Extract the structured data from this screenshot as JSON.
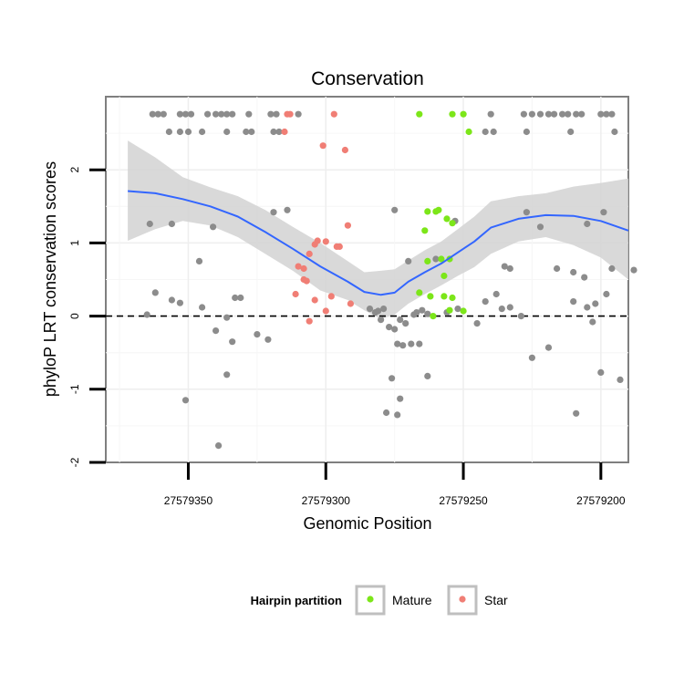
{
  "chart_data": {
    "type": "scatter",
    "title": "Conservation",
    "xlabel": "Genomic Position",
    "ylabel": "phyloP LRT conservation scores",
    "x_reversed": true,
    "xlim": [
      27579380,
      27579190
    ],
    "ylim": [
      -2,
      3
    ],
    "x_ticks": [
      27579350,
      27579300,
      27579250,
      27579200
    ],
    "x_tick_labels": [
      "27579350",
      "27579300",
      "27579250",
      "27579200"
    ],
    "y_ticks": [
      -2,
      -1,
      0,
      1,
      2
    ],
    "y_tick_labels": [
      "-2",
      "-1",
      "0",
      "1",
      "2"
    ],
    "grid": true,
    "reference_line": {
      "y": 0,
      "style": "dashed"
    },
    "legend": {
      "title": "Hairpin partition",
      "placement": "bottom",
      "entries": [
        {
          "label": "Mature",
          "color": "#7CE619"
        },
        {
          "label": "Star",
          "color": "#F07E75"
        }
      ]
    },
    "colors": {
      "Other": "#8C8C8C",
      "Mature": "#7CE619",
      "Star": "#F07E75",
      "smooth": "#3366FF",
      "band": "#D2D2D2"
    },
    "series": [
      {
        "group": "Other",
        "points": [
          [
            27579363,
            2.76
          ],
          [
            27579361,
            2.76
          ],
          [
            27579359,
            2.76
          ],
          [
            27579353,
            2.76
          ],
          [
            27579351,
            2.76
          ],
          [
            27579349,
            2.76
          ],
          [
            27579343,
            2.76
          ],
          [
            27579340,
            2.76
          ],
          [
            27579338,
            2.76
          ],
          [
            27579336,
            2.76
          ],
          [
            27579334,
            2.76
          ],
          [
            27579328,
            2.76
          ],
          [
            27579320,
            2.76
          ],
          [
            27579318,
            2.76
          ],
          [
            27579310,
            2.76
          ],
          [
            27579240,
            2.76
          ],
          [
            27579228,
            2.76
          ],
          [
            27579225,
            2.76
          ],
          [
            27579222,
            2.76
          ],
          [
            27579219,
            2.76
          ],
          [
            27579217,
            2.76
          ],
          [
            27579214,
            2.76
          ],
          [
            27579212,
            2.76
          ],
          [
            27579209,
            2.76
          ],
          [
            27579207,
            2.76
          ],
          [
            27579200,
            2.76
          ],
          [
            27579198,
            2.76
          ],
          [
            27579196,
            2.76
          ],
          [
            27579357,
            2.52
          ],
          [
            27579353,
            2.52
          ],
          [
            27579350,
            2.52
          ],
          [
            27579345,
            2.52
          ],
          [
            27579336,
            2.52
          ],
          [
            27579329,
            2.52
          ],
          [
            27579327,
            2.52
          ],
          [
            27579319,
            2.52
          ],
          [
            27579317,
            2.52
          ],
          [
            27579242,
            2.52
          ],
          [
            27579239,
            2.52
          ],
          [
            27579227,
            2.52
          ],
          [
            27579211,
            2.52
          ],
          [
            27579195,
            2.52
          ],
          [
            27579364,
            1.26
          ],
          [
            27579356,
            1.26
          ],
          [
            27579341,
            1.22
          ],
          [
            27579319,
            1.42
          ],
          [
            27579314,
            1.45
          ],
          [
            27579275,
            1.45
          ],
          [
            27579253,
            1.3
          ],
          [
            27579227,
            1.42
          ],
          [
            27579222,
            1.22
          ],
          [
            27579205,
            1.26
          ],
          [
            27579199,
            1.42
          ],
          [
            27579346,
            0.75
          ],
          [
            27579270,
            0.75
          ],
          [
            27579260,
            0.78
          ],
          [
            27579233,
            0.65
          ],
          [
            27579235,
            0.68
          ],
          [
            27579216,
            0.65
          ],
          [
            27579210,
            0.6
          ],
          [
            27579206,
            0.53
          ],
          [
            27579196,
            0.65
          ],
          [
            27579188,
            0.63
          ],
          [
            27579365,
            0.02
          ],
          [
            27579362,
            0.32
          ],
          [
            27579356,
            0.22
          ],
          [
            27579353,
            0.18
          ],
          [
            27579345,
            0.12
          ],
          [
            27579340,
            -0.2
          ],
          [
            27579336,
            -0.02
          ],
          [
            27579333,
            0.25
          ],
          [
            27579331,
            0.25
          ],
          [
            27579325,
            -0.25
          ],
          [
            27579321,
            -0.32
          ],
          [
            27579284,
            0.1
          ],
          [
            27579282,
            0.05
          ],
          [
            27579281,
            0.07
          ],
          [
            27579280,
            -0.05
          ],
          [
            27579279,
            0.1
          ],
          [
            27579277,
            -0.15
          ],
          [
            27579275,
            -0.18
          ],
          [
            27579273,
            -0.05
          ],
          [
            27579271,
            -0.1
          ],
          [
            27579268,
            0.02
          ],
          [
            27579267,
            0.05
          ],
          [
            27579265,
            0.08
          ],
          [
            27579263,
            0.03
          ],
          [
            27579256,
            0.05
          ],
          [
            27579252,
            0.1
          ],
          [
            27579245,
            -0.1
          ],
          [
            27579242,
            0.2
          ],
          [
            27579238,
            0.3
          ],
          [
            27579236,
            0.1
          ],
          [
            27579233,
            0.12
          ],
          [
            27579229,
            0.0
          ],
          [
            27579210,
            0.2
          ],
          [
            27579205,
            0.12
          ],
          [
            27579202,
            0.17
          ],
          [
            27579198,
            0.3
          ],
          [
            27579203,
            -0.08
          ],
          [
            27579334,
            -0.35
          ],
          [
            27579336,
            -0.8
          ],
          [
            27579351,
            -1.15
          ],
          [
            27579339,
            -1.77
          ],
          [
            27579274,
            -0.38
          ],
          [
            27579272,
            -0.4
          ],
          [
            27579269,
            -0.38
          ],
          [
            27579266,
            -0.38
          ],
          [
            27579263,
            -0.82
          ],
          [
            27579276,
            -0.85
          ],
          [
            27579273,
            -1.13
          ],
          [
            27579278,
            -1.32
          ],
          [
            27579274,
            -1.35
          ],
          [
            27579225,
            -0.57
          ],
          [
            27579219,
            -0.43
          ],
          [
            27579209,
            -1.33
          ],
          [
            27579200,
            -0.77
          ],
          [
            27579193,
            -0.87
          ]
        ]
      },
      {
        "group": "Mature",
        "points": [
          [
            27579266,
            2.76
          ],
          [
            27579254,
            2.76
          ],
          [
            27579250,
            2.76
          ],
          [
            27579248,
            2.52
          ],
          [
            27579264,
            1.17
          ],
          [
            27579263,
            1.43
          ],
          [
            27579260,
            1.43
          ],
          [
            27579259,
            1.45
          ],
          [
            27579256,
            1.33
          ],
          [
            27579254,
            1.27
          ],
          [
            27579263,
            0.75
          ],
          [
            27579266,
            0.32
          ],
          [
            27579262,
            0.27
          ],
          [
            27579257,
            0.55
          ],
          [
            27579258,
            0.78
          ],
          [
            27579255,
            0.78
          ],
          [
            27579257,
            0.27
          ],
          [
            27579254,
            0.25
          ],
          [
            27579255,
            0.08
          ],
          [
            27579250,
            0.07
          ],
          [
            27579261,
            0.0
          ]
        ]
      },
      {
        "group": "Star",
        "points": [
          [
            27579314,
            2.76
          ],
          [
            27579313,
            2.76
          ],
          [
            27579297,
            2.76
          ],
          [
            27579315,
            2.52
          ],
          [
            27579301,
            2.33
          ],
          [
            27579293,
            2.27
          ],
          [
            27579292,
            1.24
          ],
          [
            27579303,
            1.03
          ],
          [
            27579300,
            1.02
          ],
          [
            27579304,
            0.98
          ],
          [
            27579296,
            0.95
          ],
          [
            27579295,
            0.95
          ],
          [
            27579306,
            0.85
          ],
          [
            27579310,
            0.68
          ],
          [
            27579308,
            0.65
          ],
          [
            27579308,
            0.5
          ],
          [
            27579307,
            0.48
          ],
          [
            27579311,
            0.3
          ],
          [
            27579298,
            0.27
          ],
          [
            27579304,
            0.22
          ],
          [
            27579300,
            0.07
          ],
          [
            27579306,
            -0.07
          ],
          [
            27579291,
            0.17
          ]
        ]
      }
    ],
    "smooth_fit": {
      "x": [
        27579372,
        27579362,
        27579352,
        27579342,
        27579332,
        27579322,
        27579312,
        27579302,
        27579292,
        27579286,
        27579280,
        27579275,
        27579270,
        27579264,
        27579258,
        27579252,
        27579246,
        27579240,
        27579230,
        27579220,
        27579210,
        27579200,
        27579190
      ],
      "y": [
        1.71,
        1.68,
        1.6,
        1.5,
        1.36,
        1.15,
        0.92,
        0.68,
        0.47,
        0.33,
        0.29,
        0.32,
        0.47,
        0.6,
        0.72,
        0.87,
        1.02,
        1.21,
        1.33,
        1.38,
        1.37,
        1.3,
        1.17
      ],
      "lower": [
        1.03,
        1.19,
        1.3,
        1.24,
        1.08,
        0.85,
        0.62,
        0.35,
        0.22,
        0.08,
        -0.04,
        0.02,
        0.17,
        0.3,
        0.42,
        0.55,
        0.67,
        0.85,
        1.02,
        1.08,
        0.97,
        0.8,
        0.5
      ],
      "upper": [
        2.4,
        2.17,
        1.9,
        1.76,
        1.64,
        1.45,
        1.22,
        1.0,
        0.75,
        0.6,
        0.62,
        0.64,
        0.76,
        0.9,
        1.02,
        1.19,
        1.36,
        1.57,
        1.64,
        1.68,
        1.77,
        1.82,
        1.88
      ]
    }
  }
}
